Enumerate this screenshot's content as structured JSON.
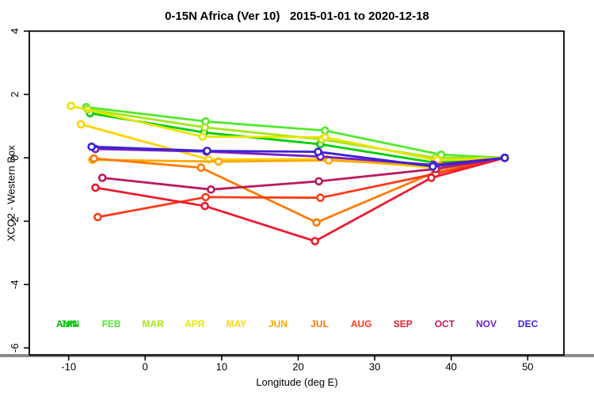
{
  "header": {
    "title": "0-15N Africa (Ver 10)   2015-01-01 to 2020-12-18"
  },
  "chart_data": {
    "type": "line",
    "title": "0-15N Africa (Ver 10)   2015-01-01 to 2020-12-18",
    "xlabel": "Longitude (deg E)",
    "ylabel": "XCO2 - Western Box",
    "xlim": [
      -15.1,
      54.7
    ],
    "ylim": [
      -6.2,
      4.0
    ],
    "x_ticks": [
      -10,
      0,
      10,
      20,
      30,
      40,
      50
    ],
    "y_ticks": [
      -6,
      -4,
      -2,
      0,
      2,
      4
    ],
    "grid": false,
    "legend_position": "bottom-inside",
    "marker": "open-circle",
    "annual_label": {
      "text": "ANN",
      "color": "#00b400"
    },
    "series": [
      {
        "name": "JAN",
        "color": "#00ce00",
        "points": [
          [
            -7.2,
            1.41
          ],
          [
            7.7,
            0.8
          ],
          [
            22.9,
            0.43
          ],
          [
            37.8,
            -0.15
          ],
          [
            47.0,
            0.0
          ]
        ]
      },
      {
        "name": "FEB",
        "color": "#52e82e",
        "points": [
          [
            -7.7,
            1.6
          ],
          [
            7.9,
            1.15
          ],
          [
            23.5,
            0.86
          ],
          [
            38.7,
            0.1
          ],
          [
            47.0,
            0.0
          ]
        ]
      },
      {
        "name": "MAR",
        "color": "#a4e619",
        "points": [
          [
            -7.5,
            1.53
          ],
          [
            7.8,
            0.96
          ],
          [
            23.1,
            0.58
          ],
          [
            38.0,
            0.0
          ],
          [
            47.0,
            0.0
          ]
        ]
      },
      {
        "name": "APR",
        "color": "#e8e400",
        "points": [
          [
            -9.7,
            1.64
          ],
          [
            7.5,
            0.67
          ],
          [
            23.5,
            0.65
          ],
          [
            38.2,
            -0.08
          ],
          [
            47.0,
            0.0
          ]
        ]
      },
      {
        "name": "MAY",
        "color": "#ffd300",
        "points": [
          [
            -8.4,
            1.06
          ],
          [
            8.3,
            -0.05
          ],
          [
            23.8,
            -0.04
          ],
          [
            38.3,
            -0.32
          ],
          [
            47.0,
            0.0
          ]
        ]
      },
      {
        "name": "JUN",
        "color": "#ffa800",
        "points": [
          [
            -6.9,
            -0.06
          ],
          [
            9.6,
            -0.12
          ],
          [
            24.0,
            -0.08
          ],
          [
            38.5,
            -0.25
          ],
          [
            47.0,
            0.0
          ]
        ]
      },
      {
        "name": "JUL",
        "color": "#ff7a00",
        "points": [
          [
            -6.7,
            -0.02
          ],
          [
            7.3,
            -0.31
          ],
          [
            22.4,
            -2.04
          ],
          [
            37.9,
            -0.45
          ],
          [
            47.0,
            0.0
          ]
        ]
      },
      {
        "name": "AUG",
        "color": "#fb3c19",
        "points": [
          [
            -6.2,
            -1.87
          ],
          [
            7.9,
            -1.24
          ],
          [
            22.9,
            -1.26
          ],
          [
            38.0,
            -0.5
          ],
          [
            47.0,
            0.0
          ]
        ]
      },
      {
        "name": "SEP",
        "color": "#ec1c2e",
        "points": [
          [
            -6.5,
            -0.94
          ],
          [
            7.8,
            -1.52
          ],
          [
            22.2,
            -2.63
          ],
          [
            37.4,
            -0.63
          ],
          [
            47.0,
            0.0
          ]
        ]
      },
      {
        "name": "OCT",
        "color": "#bb1a5c",
        "points": [
          [
            -5.6,
            -0.63
          ],
          [
            8.6,
            -1.0
          ],
          [
            22.7,
            -0.74
          ],
          [
            38.0,
            -0.35
          ],
          [
            47.0,
            0.0
          ]
        ]
      },
      {
        "name": "NOV",
        "color": "#7a1fc0",
        "points": [
          [
            -6.5,
            0.28
          ],
          [
            8.0,
            0.2
          ],
          [
            22.9,
            0.04
          ],
          [
            37.7,
            -0.22
          ],
          [
            47.0,
            0.0
          ]
        ]
      },
      {
        "name": "DEC",
        "color": "#3a23d6",
        "points": [
          [
            -7.0,
            0.35
          ],
          [
            8.1,
            0.22
          ],
          [
            22.6,
            0.19
          ],
          [
            37.6,
            -0.27
          ],
          [
            47.0,
            0.0
          ]
        ]
      }
    ]
  }
}
